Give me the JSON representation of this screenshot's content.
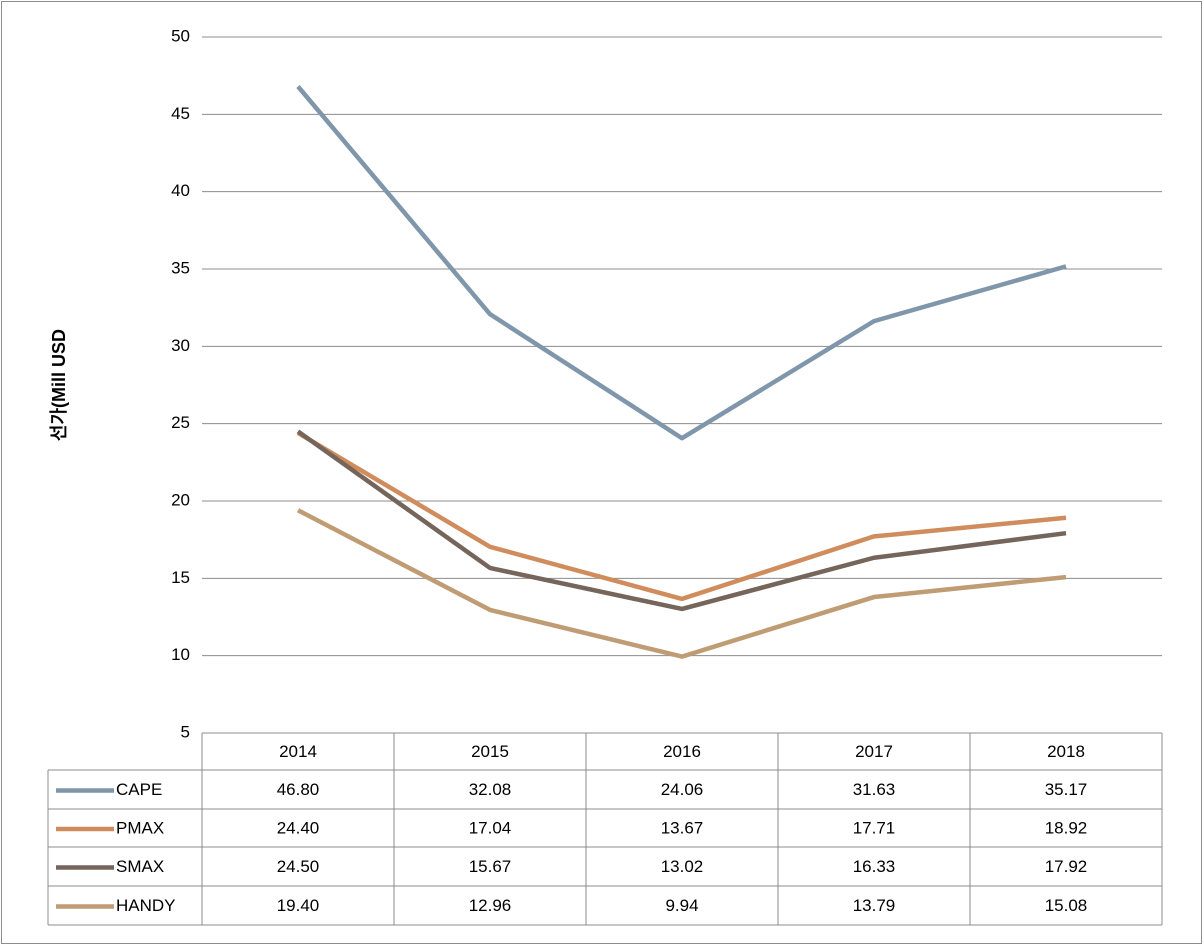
{
  "chart_data": {
    "type": "line",
    "y_label": "선가(Mill USD",
    "categories": [
      "2014",
      "2015",
      "2016",
      "2017",
      "2018"
    ],
    "series": [
      {
        "name": "CAPE",
        "color": "#7f96ab",
        "values": [
          46.8,
          32.08,
          24.06,
          31.63,
          35.17
        ],
        "value_labels": [
          "46.80",
          "32.08",
          "24.06",
          "31.63",
          "35.17"
        ]
      },
      {
        "name": "PMAX",
        "color": "#d08c5c",
        "values": [
          24.4,
          17.04,
          13.67,
          17.71,
          18.92
        ],
        "value_labels": [
          "24.40",
          "17.04",
          "13.67",
          "17.71",
          "18.92"
        ]
      },
      {
        "name": "SMAX",
        "color": "#75655a",
        "values": [
          24.5,
          15.67,
          13.02,
          16.33,
          17.92
        ],
        "value_labels": [
          "24.50",
          "15.67",
          "13.02",
          "16.33",
          "17.92"
        ]
      },
      {
        "name": "HANDY",
        "color": "#bf9c73",
        "values": [
          19.4,
          12.96,
          9.94,
          13.79,
          15.08
        ],
        "value_labels": [
          "19.40",
          "12.96",
          "9.94",
          "13.79",
          "15.08"
        ]
      }
    ],
    "ylim": [
      5,
      50
    ],
    "yticks": [
      5,
      10,
      15,
      20,
      25,
      30,
      35,
      40,
      45,
      50
    ],
    "grid": true
  }
}
